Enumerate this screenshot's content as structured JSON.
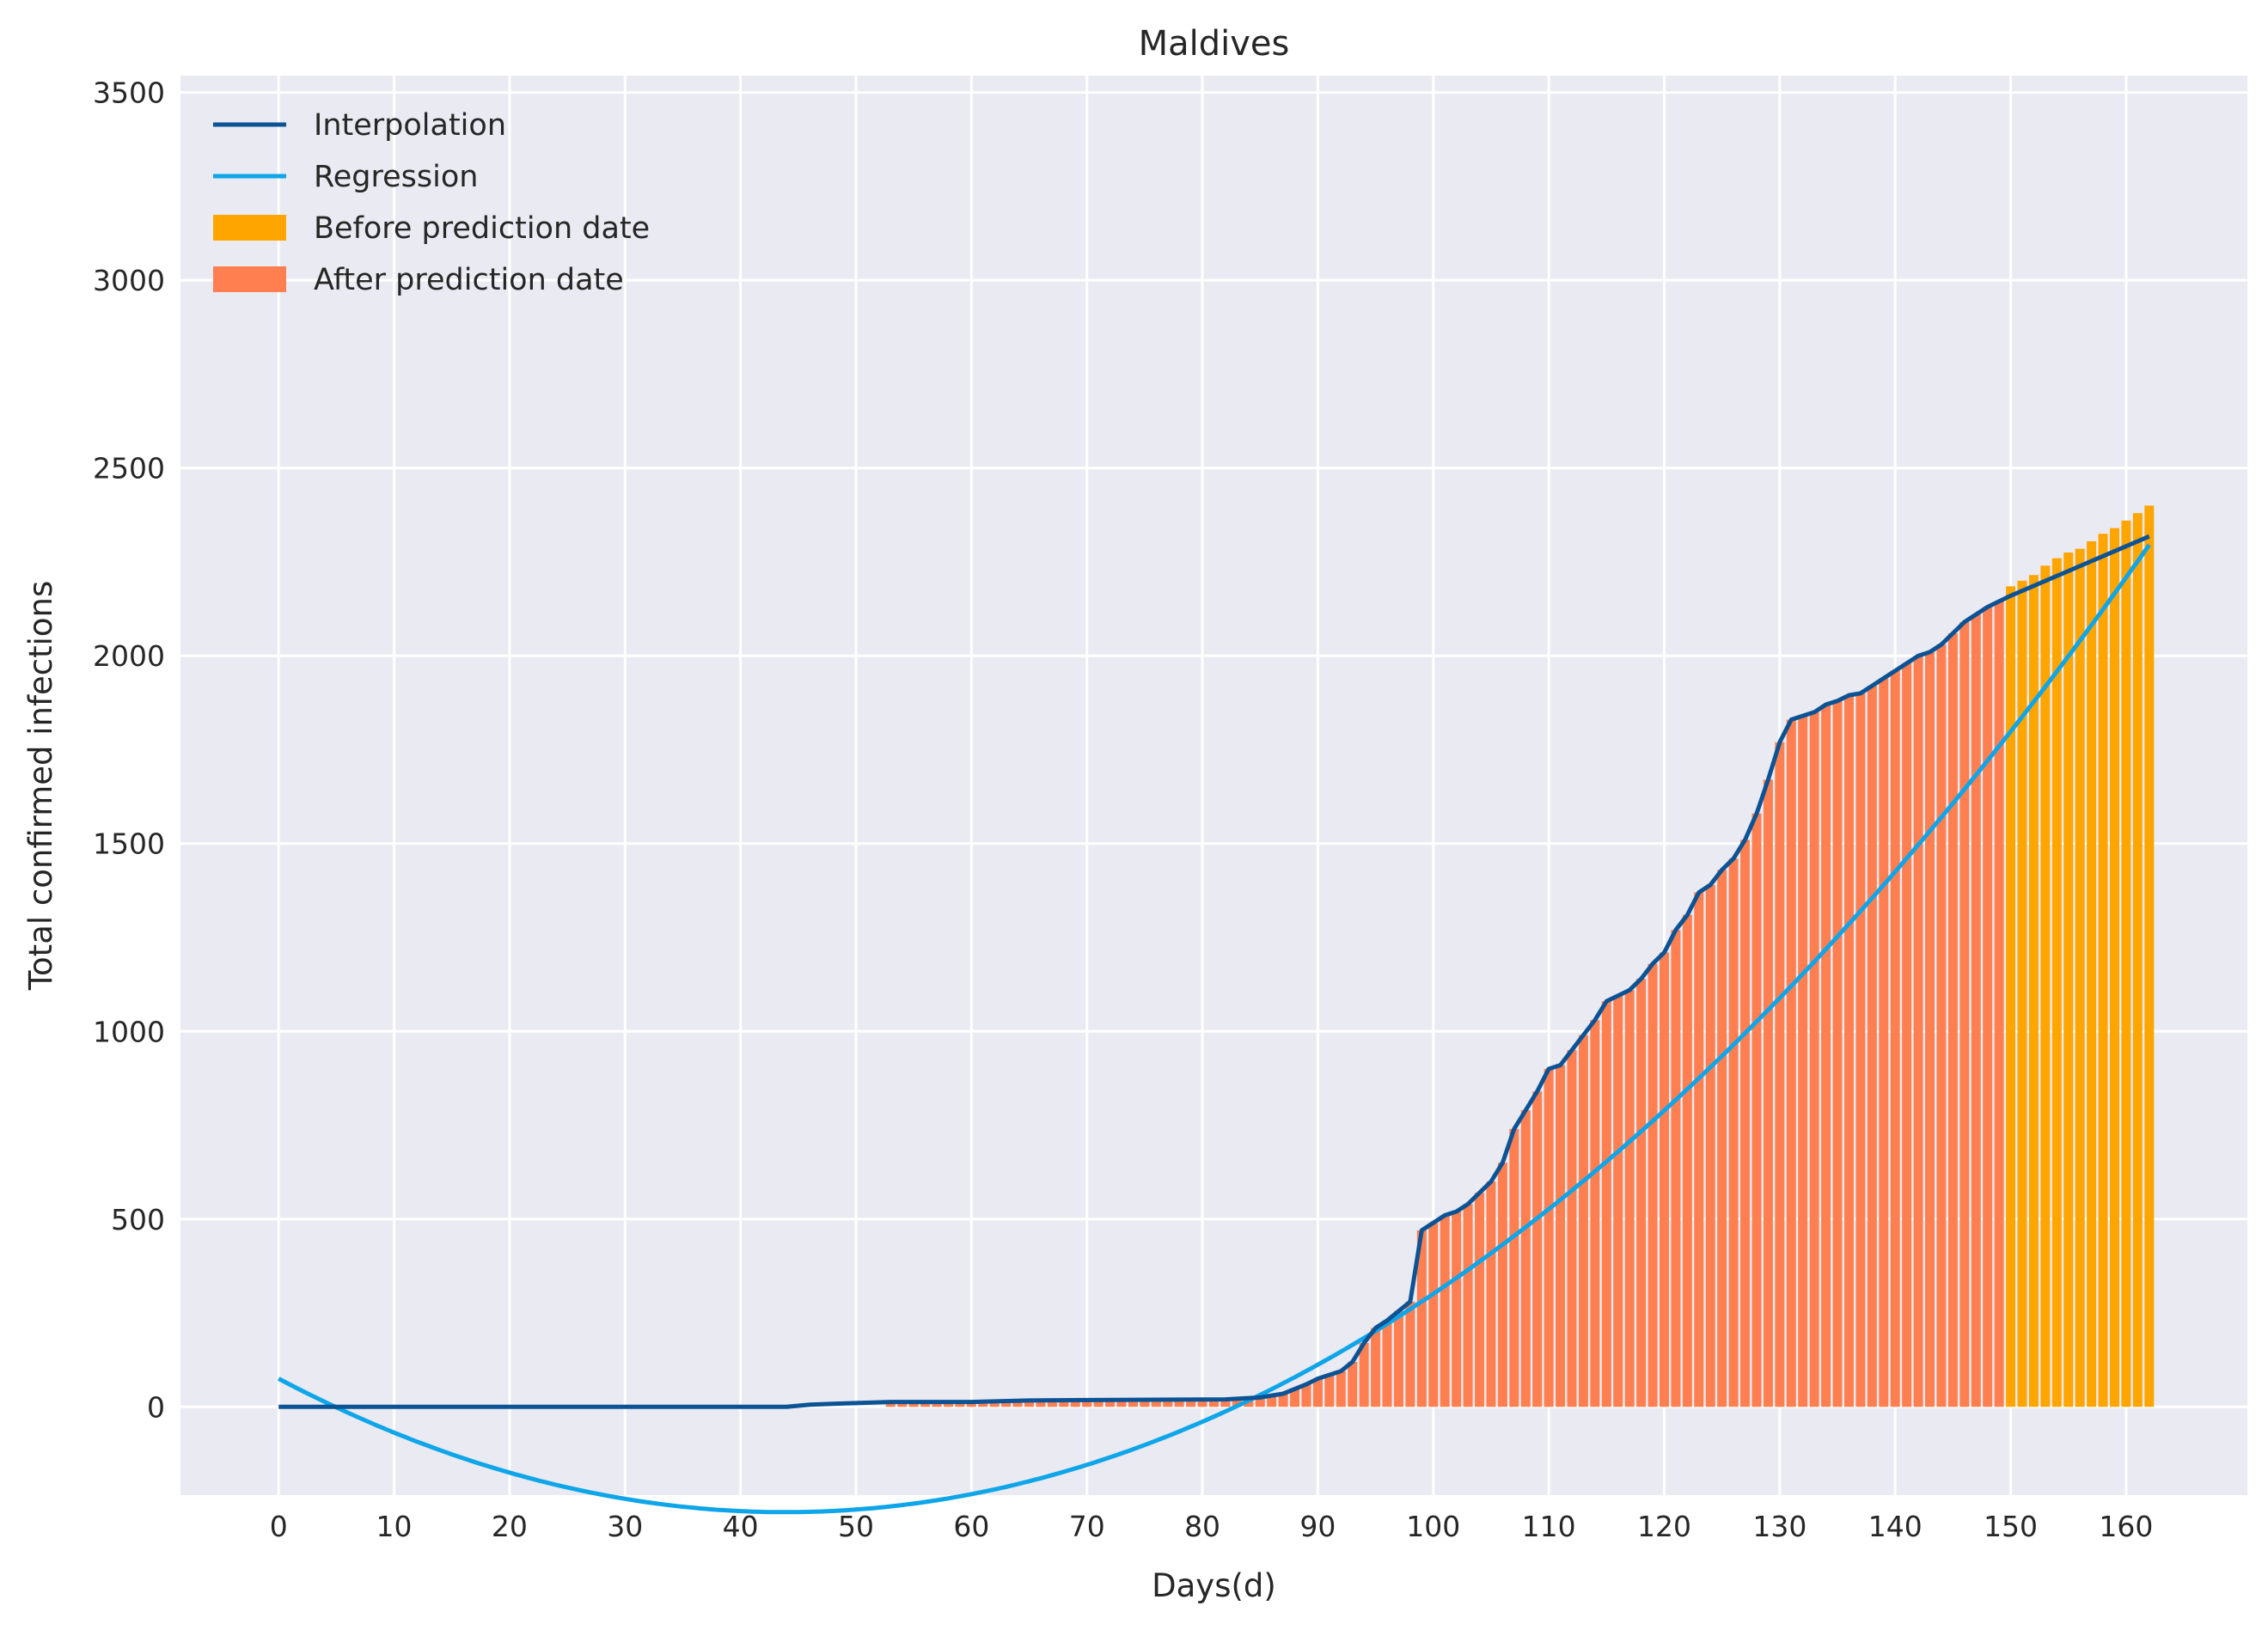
{
  "chart_data": {
    "type": "bar",
    "title": "Maldives",
    "xlabel": "Days(d)",
    "ylabel": "Total confirmed infections",
    "xlim": [
      -8.5,
      170.5
    ],
    "ylim": [
      -235,
      3545
    ],
    "xticks": [
      0,
      10,
      20,
      30,
      40,
      50,
      60,
      70,
      80,
      90,
      100,
      110,
      120,
      130,
      140,
      150,
      160
    ],
    "yticks": [
      0,
      500,
      1000,
      1500,
      2000,
      2500,
      3000,
      3500
    ],
    "grid": true,
    "legend_position": "top-left",
    "prediction_day": 150,
    "colors": {
      "background": "#eaeaf2",
      "grid": "#ffffff",
      "interpolation": "#0b5394",
      "regression": "#0ea5e9",
      "before_bar": "#ffa500",
      "after_bar": "#ff7f50"
    },
    "legend": [
      {
        "label": "Interpolation",
        "kind": "line",
        "color": "#0b5394"
      },
      {
        "label": "Regression",
        "kind": "line",
        "color": "#0ea5e9"
      },
      {
        "label": "Before prediction date",
        "kind": "patch",
        "color": "#ffa500"
      },
      {
        "label": "After prediction date",
        "kind": "patch",
        "color": "#ff7f50"
      }
    ],
    "regression": {
      "name": "Regression",
      "coefficients": {
        "a": 0.1846,
        "b": -16.2,
        "c": 75
      }
    },
    "interpolation": {
      "name": "Interpolation",
      "points": [
        [
          0,
          0
        ],
        [
          44,
          0
        ],
        [
          46,
          6
        ],
        [
          48,
          8
        ],
        [
          50,
          10
        ],
        [
          53,
          13
        ],
        [
          60,
          13
        ],
        [
          65,
          17
        ],
        [
          70,
          18
        ],
        [
          82,
          20
        ],
        [
          85,
          25
        ],
        [
          87,
          35
        ],
        [
          89,
          60
        ],
        [
          90,
          75
        ],
        [
          91,
          85
        ],
        [
          92,
          95
        ],
        [
          93,
          120
        ],
        [
          94,
          170
        ],
        [
          95,
          210
        ],
        [
          96,
          230
        ],
        [
          98,
          280
        ],
        [
          99,
          470
        ],
        [
          100,
          490
        ],
        [
          101,
          510
        ],
        [
          102,
          520
        ],
        [
          103,
          540
        ],
        [
          105,
          600
        ],
        [
          106,
          650
        ],
        [
          107,
          740
        ],
        [
          108,
          790
        ],
        [
          109,
          840
        ],
        [
          110,
          900
        ],
        [
          111,
          910
        ],
        [
          112,
          950
        ],
        [
          113,
          990
        ],
        [
          114,
          1030
        ],
        [
          115,
          1080
        ],
        [
          116,
          1095
        ],
        [
          117,
          1110
        ],
        [
          118,
          1140
        ],
        [
          119,
          1180
        ],
        [
          120,
          1210
        ],
        [
          121,
          1270
        ],
        [
          122,
          1310
        ],
        [
          123,
          1370
        ],
        [
          124,
          1390
        ],
        [
          125,
          1430
        ],
        [
          126,
          1460
        ],
        [
          127,
          1510
        ],
        [
          128,
          1580
        ],
        [
          129,
          1670
        ],
        [
          130,
          1770
        ],
        [
          131,
          1830
        ],
        [
          132,
          1840
        ],
        [
          133,
          1850
        ],
        [
          134,
          1870
        ],
        [
          135,
          1880
        ],
        [
          136,
          1895
        ],
        [
          137,
          1900
        ],
        [
          138,
          1920
        ],
        [
          139,
          1940
        ],
        [
          140,
          1960
        ],
        [
          141,
          1980
        ],
        [
          142,
          2000
        ],
        [
          143,
          2010
        ],
        [
          144,
          2030
        ],
        [
          145,
          2060
        ],
        [
          146,
          2090
        ],
        [
          147,
          2110
        ],
        [
          148,
          2130
        ],
        [
          149,
          2145
        ],
        [
          150,
          2160
        ],
        [
          162,
          2318
        ]
      ]
    },
    "bars": [
      {
        "x": [
          53,
          54,
          55,
          56,
          57,
          58,
          59,
          60,
          61,
          62,
          63,
          64,
          65,
          66,
          67,
          68,
          69,
          70,
          71,
          72,
          73,
          74,
          75,
          76,
          77,
          78,
          79,
          80,
          81,
          82,
          83,
          84,
          85,
          86,
          87,
          88,
          89,
          90,
          91,
          92,
          93,
          94,
          95,
          96,
          97,
          98,
          99,
          100,
          101,
          102,
          103,
          104,
          105,
          106,
          107,
          108,
          109,
          110,
          111,
          112,
          113,
          114,
          115,
          116,
          117,
          118,
          119,
          120,
          121,
          122,
          123,
          124,
          125,
          126,
          127,
          128,
          129,
          130,
          131,
          132,
          133,
          134,
          135,
          136,
          137,
          138,
          139,
          140,
          141,
          142,
          143,
          144,
          145,
          146,
          147,
          148,
          149
        ],
        "name": "After prediction date",
        "values": [
          13,
          13,
          13,
          13,
          13,
          13,
          13,
          13,
          13,
          13,
          13,
          13,
          17,
          17,
          17,
          17,
          18,
          18,
          18,
          18,
          18,
          18,
          18,
          18,
          18,
          18,
          19,
          19,
          20,
          20,
          20,
          22,
          25,
          30,
          35,
          50,
          60,
          75,
          85,
          95,
          120,
          170,
          210,
          230,
          255,
          280,
          470,
          490,
          510,
          520,
          540,
          570,
          600,
          650,
          740,
          790,
          840,
          900,
          910,
          950,
          990,
          1030,
          1080,
          1095,
          1110,
          1140,
          1180,
          1210,
          1270,
          1310,
          1370,
          1390,
          1430,
          1460,
          1510,
          1580,
          1670,
          1770,
          1830,
          1840,
          1850,
          1870,
          1880,
          1895,
          1900,
          1920,
          1940,
          1960,
          1980,
          2000,
          2010,
          2030,
          2060,
          2090,
          2110,
          2130,
          2145
        ]
      },
      {
        "x": [
          150,
          151,
          152,
          153,
          154,
          155,
          156,
          157,
          158,
          159,
          160,
          161,
          162
        ],
        "name": "Before prediction date",
        "values": [
          2185,
          2200,
          2215,
          2240,
          2260,
          2275,
          2285,
          2305,
          2325,
          2340,
          2360,
          2380,
          2400
        ]
      }
    ]
  }
}
